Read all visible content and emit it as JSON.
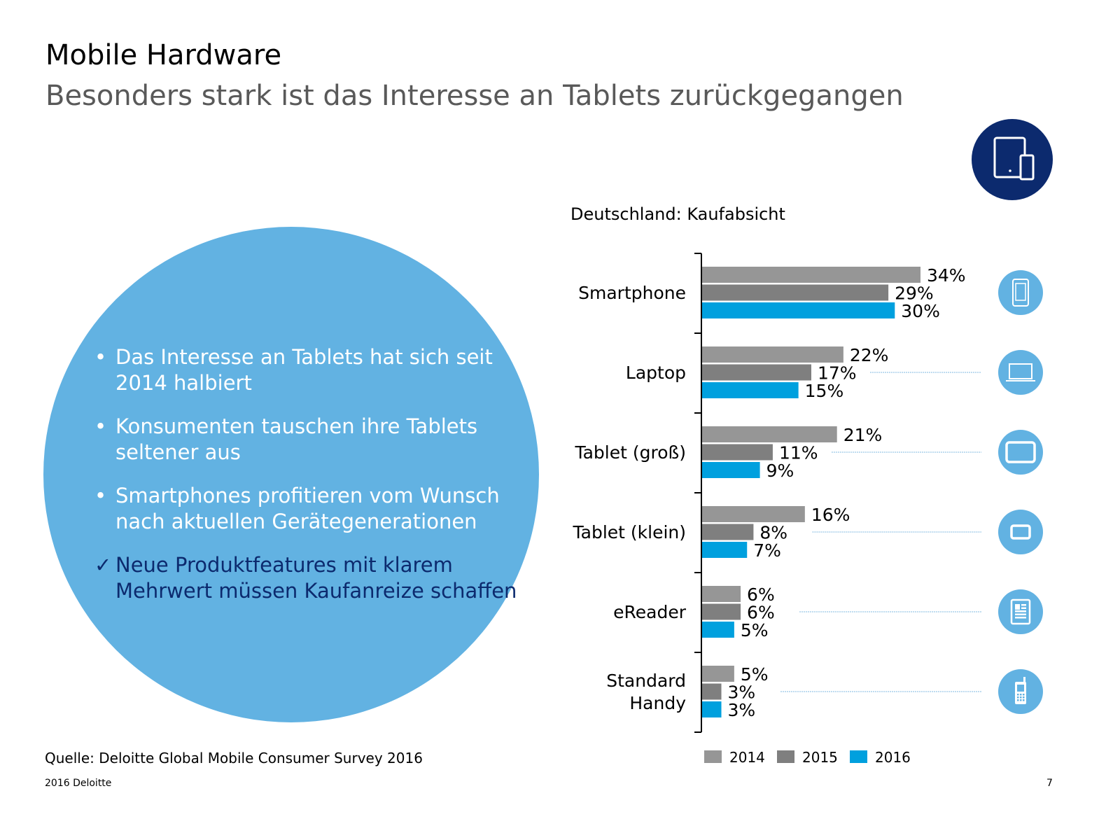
{
  "header": {
    "title": "Mobile Hardware",
    "subtitle": "Besonders stark ist das Interesse an Tablets zurückgegangen",
    "hero_icon": "tablet-smartphone-icon"
  },
  "bubble": {
    "bullets": [
      {
        "marker": "•",
        "text": "Das Interesse an Tablets hat sich seit 2014 halbiert"
      },
      {
        "marker": "•",
        "text": "Konsumenten tauschen ihre Tablets seltener aus"
      },
      {
        "marker": "•",
        "text": "Smartphones profitieren vom Wunsch nach aktuellen Gerätegenerationen"
      },
      {
        "marker": "✓",
        "text": "Neue Produktfeatures mit klarem Mehrwert müssen Kaufanreize schaffen"
      }
    ]
  },
  "chart_data": {
    "type": "bar",
    "orientation": "horizontal",
    "title": "Deutschland: Kaufabsicht",
    "xlabel": "",
    "ylabel": "",
    "xlim": [
      0,
      34
    ],
    "grid": false,
    "legend_position": "bottom",
    "categories": [
      {
        "label": "Smartphone",
        "lines": [
          "Smartphone"
        ],
        "icon": "smartphone-icon"
      },
      {
        "label": "Laptop",
        "lines": [
          "Laptop"
        ],
        "icon": "laptop-icon"
      },
      {
        "label": "Tablet (groß)",
        "lines": [
          "Tablet (groß)"
        ],
        "icon": "tablet-large-icon"
      },
      {
        "label": "Tablet (klein)",
        "lines": [
          "Tablet (klein)"
        ],
        "icon": "tablet-small-icon"
      },
      {
        "label": "eReader",
        "lines": [
          "eReader"
        ],
        "icon": "ereader-icon"
      },
      {
        "label": "Standard Handy",
        "lines": [
          "Standard",
          "Handy"
        ],
        "icon": "feature-phone-icon"
      }
    ],
    "series": [
      {
        "name": "2014",
        "color": "#969696",
        "values": [
          34,
          22,
          21,
          16,
          6,
          5
        ]
      },
      {
        "name": "2015",
        "color": "#7f7f7f",
        "values": [
          29,
          17,
          11,
          8,
          6,
          3
        ]
      },
      {
        "name": "2016",
        "color": "#00a0de",
        "values": [
          30,
          15,
          9,
          7,
          5,
          3
        ]
      }
    ],
    "value_suffix": "%"
  },
  "footer": {
    "source": "Quelle: Deloitte Global Mobile Consumer Survey 2016",
    "copyright": "2016 Deloitte",
    "page_number": "7"
  },
  "colors": {
    "bubble": "#62b2e2",
    "navy": "#0c2a6e",
    "icon_circle": "#62b2e2",
    "connector": "#7fb9e0"
  }
}
